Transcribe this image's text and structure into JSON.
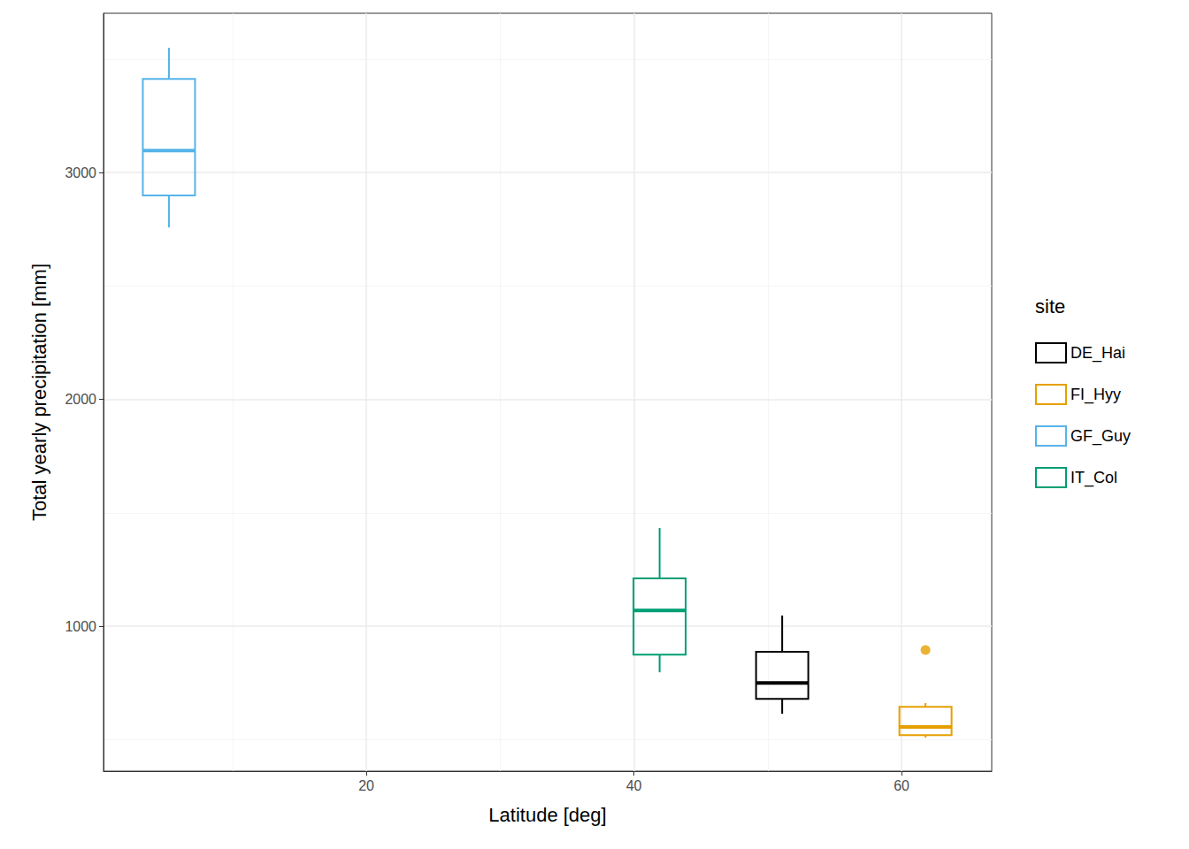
{
  "chart_data": {
    "type": "boxplot",
    "x_label": "Latitude [deg]",
    "y_label": "Total yearly precipitation [mm]",
    "xlim": [
      0.36,
      66.74
    ],
    "xticks": [
      20,
      40,
      60
    ],
    "ylim": [
      361,
      3702
    ],
    "yticks": [
      1000,
      2000,
      3000
    ],
    "grid": true,
    "legend": "right",
    "legend_title": "site",
    "series": [
      {
        "name": "DE_Hai",
        "color": "#000000",
        "x": 51.08,
        "low": 614,
        "q1": 680,
        "median": 750,
        "q3": 887,
        "high": 1047,
        "outliers": []
      },
      {
        "name": "FI_Hyy",
        "color": "#E69F00",
        "x": 61.79,
        "low": 509,
        "q1": 520,
        "median": 556,
        "q3": 645,
        "high": 661,
        "outliers": [
          895
        ]
      },
      {
        "name": "GF_Guy",
        "color": "#56B4E9",
        "x": 5.25,
        "low": 2758,
        "q1": 2899,
        "median": 3097,
        "q3": 3413,
        "high": 3550,
        "outliers": []
      },
      {
        "name": "IT_Col",
        "color": "#009E73",
        "x": 41.92,
        "low": 797,
        "q1": 875,
        "median": 1070,
        "q3": 1211,
        "high": 1433,
        "outliers": []
      }
    ]
  }
}
